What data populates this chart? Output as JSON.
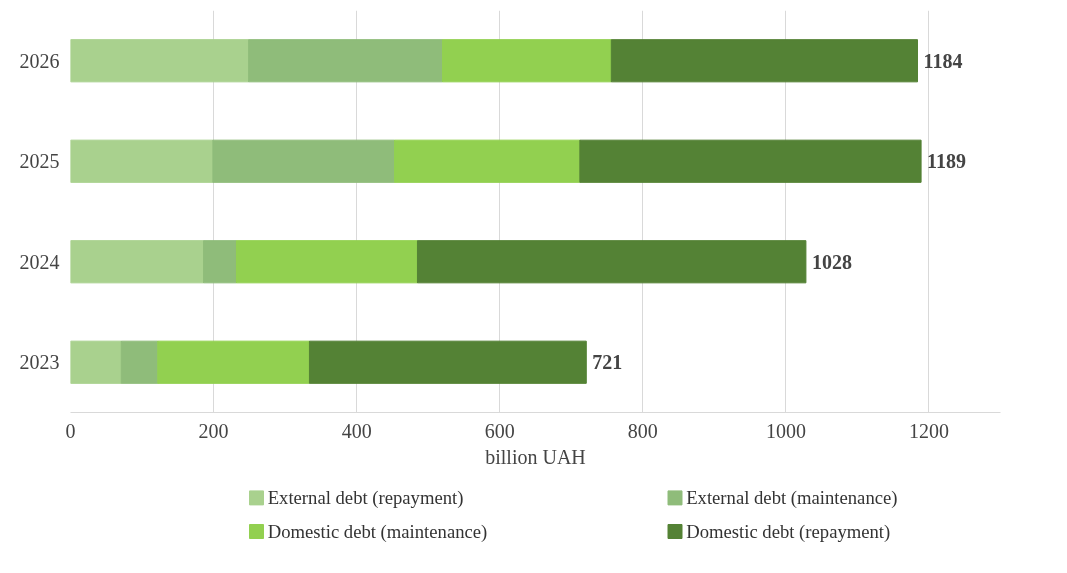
{
  "chart_data": {
    "type": "bar",
    "orientation": "horizontal",
    "stacked": true,
    "xlabel": "billion UAH",
    "categories": [
      "2026",
      "2025",
      "2024",
      "2023"
    ],
    "series": [
      {
        "name": "External debt (repayment)",
        "color": "#a9d18e",
        "values": [
          249,
          199,
          186,
          71
        ]
      },
      {
        "name": "External debt (maintenance)",
        "color": "#8fbc7a",
        "values": [
          271,
          254,
          46,
          51
        ]
      },
      {
        "name": "Domestic debt (maintenance)",
        "color": "#92d050",
        "values": [
          236,
          259,
          253,
          212
        ]
      },
      {
        "name": "Domestic debt (repayment)",
        "color": "#548235",
        "values": [
          428,
          477,
          543,
          387
        ]
      }
    ],
    "totals": [
      "1184",
      "1189",
      "1028",
      "721"
    ],
    "xlim": [
      0,
      1300
    ],
    "xticks": [
      0,
      200,
      400,
      600,
      800,
      1000,
      1200
    ],
    "grid": "x",
    "legend": "bottom"
  }
}
